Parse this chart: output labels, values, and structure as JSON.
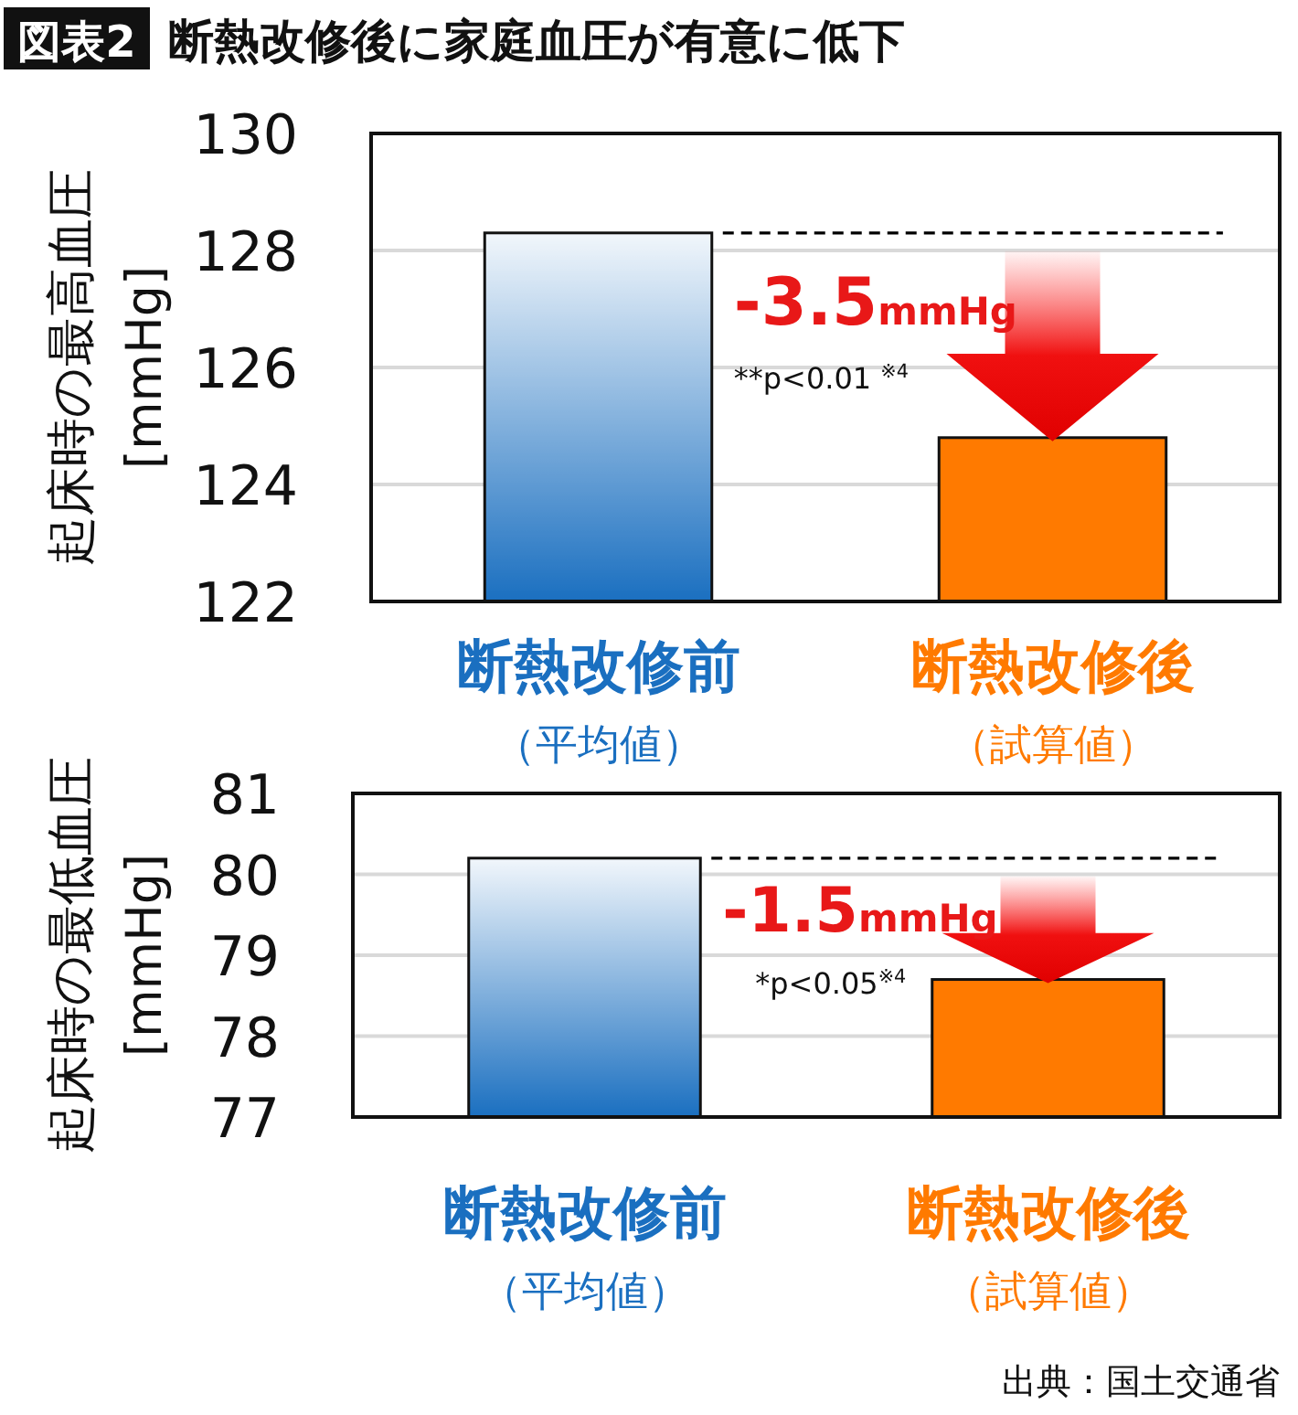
{
  "chart_data": [
    {
      "type": "bar",
      "title": "図表2",
      "subtitle": "断熱改修後に家庭血圧が有意に低下",
      "ylabel": "起床時の最高血圧\n[mmHg]",
      "categories": [
        "断熱改修前（平均値）",
        "断熱改修後（試算値）"
      ],
      "values": [
        128.3,
        124.8
      ],
      "colors": [
        "#1a6fc0",
        "#ff7a00"
      ],
      "ylim": [
        122,
        130
      ],
      "yticks": [
        122,
        124,
        126,
        128,
        130
      ],
      "grid": "y",
      "ref_lines": [
        {
          "axis": "y",
          "value": 128.3,
          "line_style": "dashed",
          "color": "#000000"
        }
      ],
      "annotations": [
        "-3.5mmHg",
        "**p<0.01 $^{※4}$"
      ]
    },
    {
      "type": "bar",
      "ylabel": "起床時の最低血圧\n[mmHg]",
      "categories": [
        "断熱改修前（平均値）",
        "断熱改修後（試算値）"
      ],
      "values": [
        80.2,
        78.7
      ],
      "colors": [
        "#1a6fc0",
        "#ff7a00"
      ],
      "ylim": [
        77,
        81
      ],
      "yticks": [
        77,
        78,
        79,
        80,
        81
      ],
      "grid": "y",
      "ref_lines": [
        {
          "axis": "y",
          "value": 80.2,
          "line_style": "dashed",
          "color": "#000000"
        }
      ],
      "annotations": [
        "-1.5mmHg",
        "*p<0.05$^{※4}$",
        "出典：国土交通省"
      ]
    }
  ]
}
